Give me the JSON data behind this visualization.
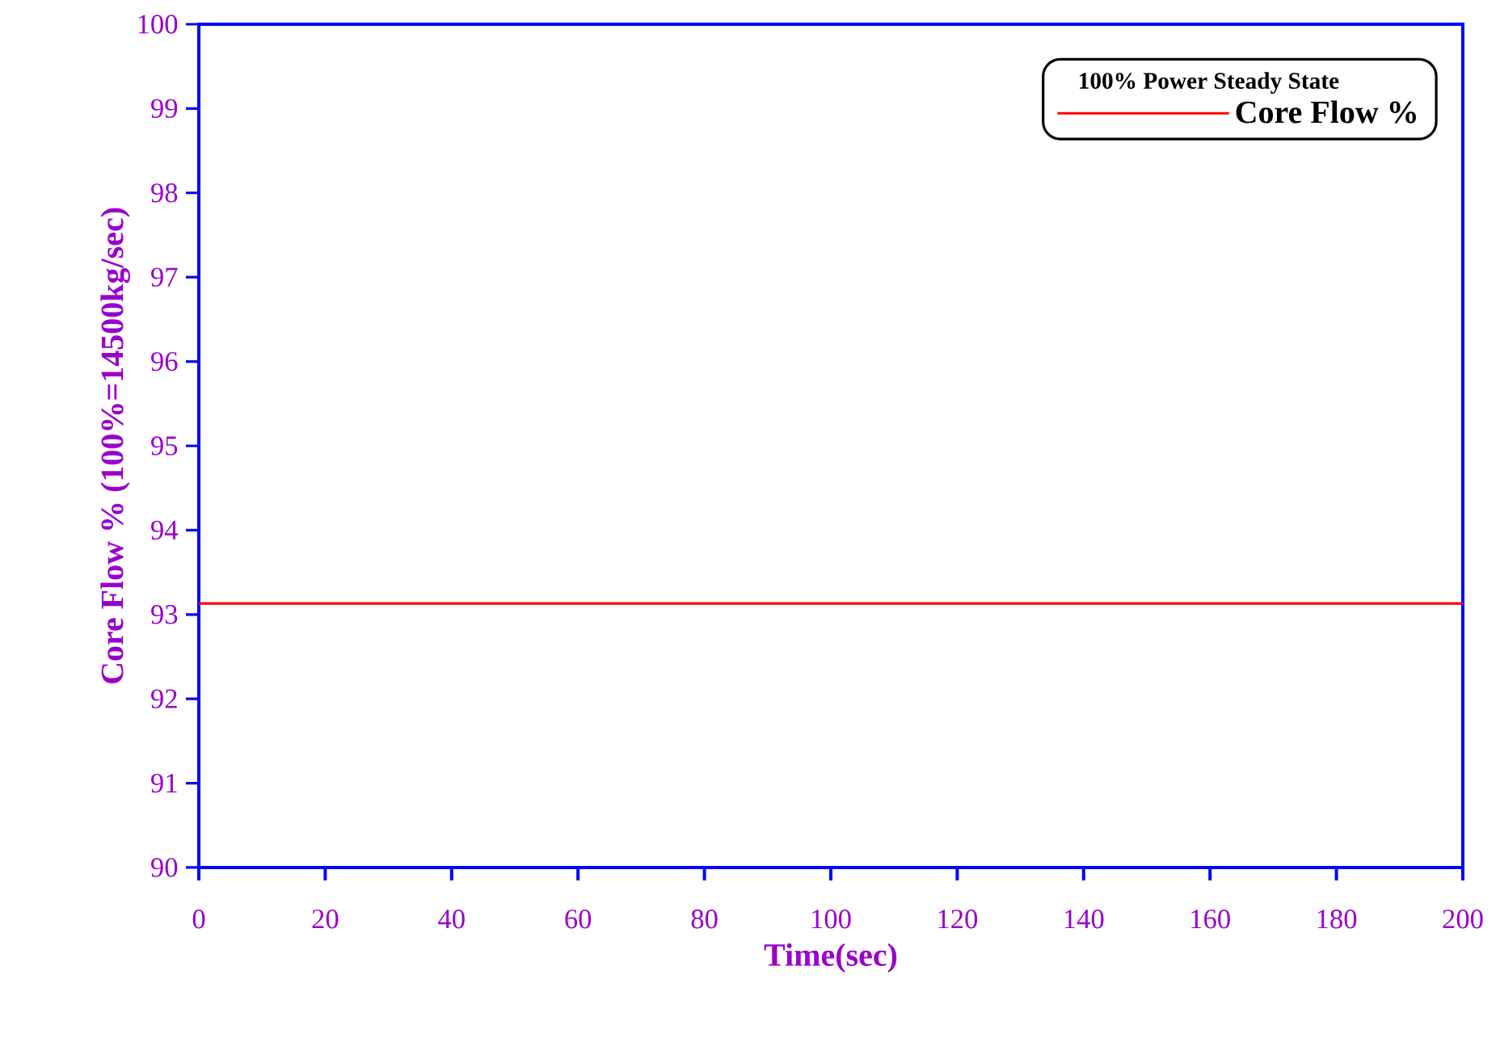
{
  "chart_data": {
    "type": "line",
    "xlabel": "Time(sec)",
    "ylabel": "Core Flow % (100%=14500kg/sec)",
    "legend_title": "100% Power Steady State",
    "legend": "top right",
    "grid": false,
    "x": [
      0,
      200
    ],
    "series": [
      {
        "name": "Core Flow %",
        "color": "#ff0000",
        "values": [
          93.13,
          93.13
        ]
      }
    ],
    "xlim": [
      0,
      200
    ],
    "xticks": [
      0,
      20,
      40,
      60,
      80,
      100,
      120,
      140,
      160,
      180,
      200
    ],
    "ylim": [
      90,
      100
    ],
    "yticks": [
      90,
      91,
      92,
      93,
      94,
      95,
      96,
      97,
      98,
      99,
      100
    ]
  }
}
